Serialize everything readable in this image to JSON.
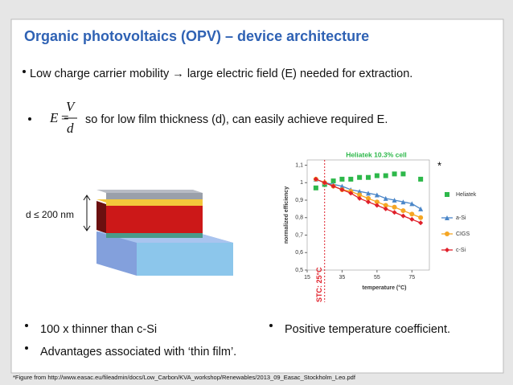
{
  "title": "Organic photovoltaics (OPV) – device architecture",
  "bullets": [
    "Low charge carrier mobility → large electric field (E) needed for extraction.",
    "so for low film thickness (d), can easily achieve required E."
  ],
  "formula": {
    "lhs": "E",
    "eq": "=",
    "num": "V",
    "den": "d"
  },
  "thickness_label": "d ≤ 200 nm",
  "figure_mark": "*",
  "bottom_bullets": [
    "100 x thinner than c-Si",
    "Advantages associated with ‘thin film’.",
    "Positive temperature coefficient."
  ],
  "footnote": "*Figure from http://www.easac.eu/fileadmin/docs/Low_Carbon/KVA_workshop/Renewables/2013_09_Easac_Stockholm_Leo.pdf",
  "chart_data": {
    "type": "line",
    "title": "Heliatek 10.3% cell",
    "x_label": "temperature (°C)",
    "y_label": "normalized efficiency",
    "x": [
      20,
      25,
      30,
      35,
      40,
      45,
      50,
      55,
      60,
      65,
      70,
      75,
      80
    ],
    "series": [
      {
        "name": "Heliatek",
        "color": "#2db84a",
        "marker": "square",
        "line": false,
        "values": [
          0.97,
          0.99,
          1.01,
          1.02,
          1.02,
          1.03,
          1.03,
          1.04,
          1.04,
          1.05,
          1.05,
          null,
          1.02
        ]
      },
      {
        "name": "a-Si",
        "color": "#4a86c8",
        "marker": "triangle",
        "line": true,
        "values": [
          1.02,
          1.0,
          0.99,
          0.98,
          0.96,
          0.95,
          0.94,
          0.93,
          0.91,
          0.9,
          0.89,
          0.88,
          0.85
        ]
      },
      {
        "name": "CIGS",
        "color": "#f5a623",
        "marker": "circle",
        "line": true,
        "values": [
          1.02,
          1.0,
          0.98,
          0.96,
          0.95,
          0.93,
          0.91,
          0.89,
          0.87,
          0.86,
          0.84,
          0.82,
          0.8
        ]
      },
      {
        "name": "c-Si",
        "color": "#e0202a",
        "marker": "diamond",
        "line": true,
        "values": [
          1.02,
          1.0,
          0.98,
          0.96,
          0.94,
          0.91,
          0.89,
          0.87,
          0.85,
          0.83,
          0.81,
          0.79,
          0.77
        ]
      }
    ],
    "annotations": [
      {
        "text": "STC: 25°C",
        "x": 25,
        "color": "#e0202a"
      }
    ],
    "xlim": [
      15,
      85
    ],
    "xticks": [
      15,
      35,
      55,
      75
    ],
    "ylim": [
      0.5,
      1.13
    ],
    "yticks": [
      {
        "value": 0.5,
        "label": "0,5"
      },
      {
        "value": 0.6,
        "label": "0,6"
      },
      {
        "value": 0.7,
        "label": "0,7"
      },
      {
        "value": 0.8,
        "label": "0,8"
      },
      {
        "value": 0.9,
        "label": "0,9"
      },
      1,
      {
        "value": 1.1,
        "label": "1,1"
      }
    ],
    "grid": false
  }
}
